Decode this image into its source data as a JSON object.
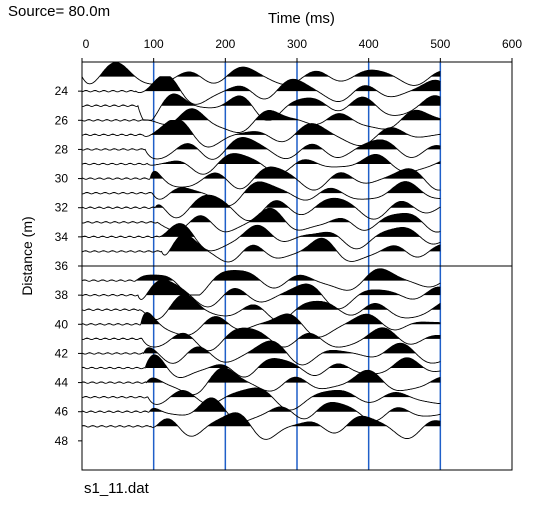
{
  "header": {
    "source_label": "Source= 80.0m"
  },
  "footer": {
    "file_name": "s1_11.dat"
  },
  "chart_data": {
    "type": "line",
    "subtype": "seismic-shot-gather-wiggle",
    "title": "",
    "source_label": "Source= 80.0m",
    "xlabel": "Time (ms)",
    "ylabel": "Distance (m)",
    "x_axis_position": "top",
    "xlim": [
      0,
      600
    ],
    "ylim": [
      22,
      50
    ],
    "y_inverted": true,
    "x_ticks": [
      0,
      100,
      200,
      300,
      400,
      500,
      600
    ],
    "y_ticks": [
      24,
      26,
      28,
      30,
      32,
      34,
      36,
      38,
      40,
      42,
      44,
      46,
      48
    ],
    "vertical_gridlines_ms": [
      100,
      200,
      300,
      400,
      500
    ],
    "gridline_color": "#1f5fc9",
    "trace_color": "#000000",
    "fill": "positive-lobes-black",
    "divider_distance_m": 36,
    "record_length_ms": 500,
    "trace_distances_m": [
      23,
      24,
      25,
      26,
      27,
      28,
      29,
      30,
      31,
      32,
      33,
      34,
      35,
      37,
      38,
      39,
      40,
      41,
      42,
      43,
      44,
      45,
      46,
      47
    ],
    "first_break_ms": [
      0,
      75,
      78,
      82,
      85,
      88,
      92,
      95,
      98,
      102,
      105,
      108,
      111,
      75,
      78,
      80,
      82,
      84,
      86,
      88,
      90,
      92,
      94,
      96
    ],
    "file_name": "s1_11.dat"
  }
}
